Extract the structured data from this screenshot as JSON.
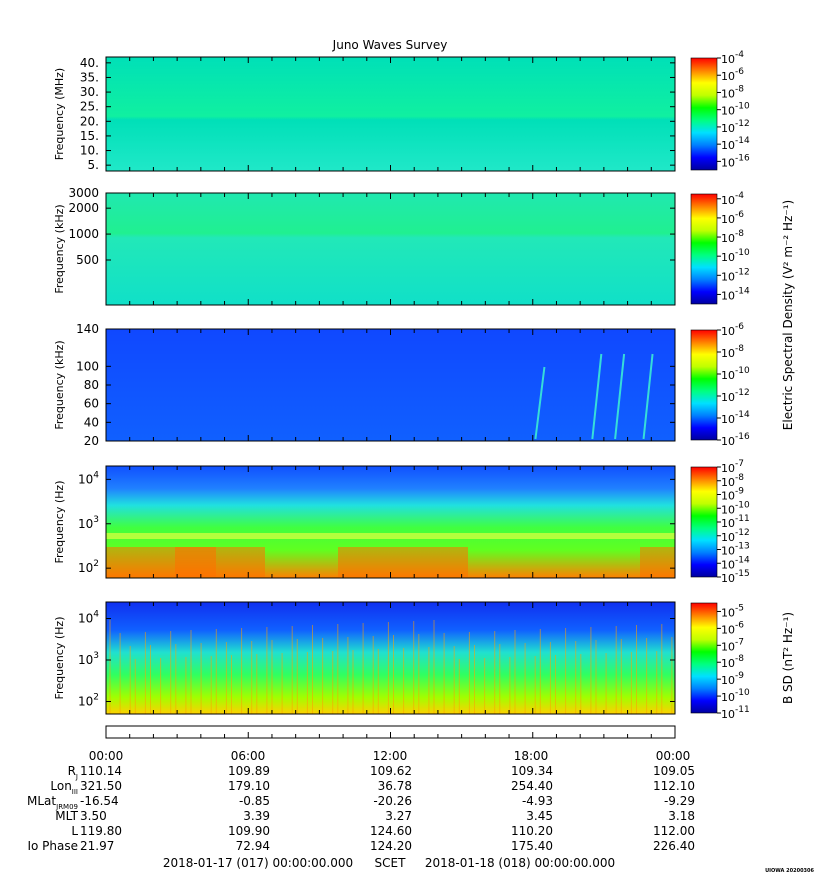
{
  "title": "Juno Waves Survey",
  "colors": {
    "colormap": [
      "#0000a0",
      "#0000ff",
      "#0080ff",
      "#00e0ff",
      "#00ff80",
      "#00ff00",
      "#c0ff00",
      "#ffff00",
      "#ff8000",
      "#ff0000"
    ]
  },
  "chart_data": [
    {
      "type": "heatmap",
      "name": "panel-1",
      "ylabel": "Frequency (MHz)",
      "yscale": "linear",
      "ylim": [
        3,
        42
      ],
      "yticks": [
        {
          "v": 40,
          "t": "40."
        },
        {
          "v": 35,
          "t": "35."
        },
        {
          "v": 30,
          "t": "30."
        },
        {
          "v": 25,
          "t": "25."
        },
        {
          "v": 20,
          "t": "20."
        },
        {
          "v": 15,
          "t": "15."
        },
        {
          "v": 10,
          "t": "10."
        },
        {
          "v": 5,
          "t": "5."
        }
      ],
      "colorbar": {
        "min_exp": -17,
        "max_exp": -4,
        "ticks": [
          {
            "base": "10",
            "exp": "-4",
            "e": -4
          },
          {
            "base": "10",
            "exp": "-6",
            "e": -6
          },
          {
            "base": "10",
            "exp": "-8",
            "e": -8
          },
          {
            "base": "10",
            "exp": "-10",
            "e": -10
          },
          {
            "base": "10",
            "exp": "-12",
            "e": -12
          },
          {
            "base": "10",
            "exp": "-14",
            "e": -14
          },
          {
            "base": "10",
            "exp": "-16",
            "e": -16
          }
        ]
      }
    },
    {
      "type": "heatmap",
      "name": "panel-2",
      "ylabel": "Frequency (kHz)",
      "yscale": "log",
      "ylim": [
        150,
        3000
      ],
      "yticks": [
        {
          "v": 3000,
          "t": "3000"
        },
        {
          "v": 2000,
          "t": "2000"
        },
        {
          "v": 1000,
          "t": "1000"
        },
        {
          "v": 500,
          "t": "500"
        }
      ],
      "colorbar": {
        "min_exp": -15,
        "max_exp": -3.5,
        "ticks": [
          {
            "base": "10",
            "exp": "-4",
            "e": -4
          },
          {
            "base": "10",
            "exp": "-6",
            "e": -6
          },
          {
            "base": "10",
            "exp": "-8",
            "e": -8
          },
          {
            "base": "10",
            "exp": "-10",
            "e": -10
          },
          {
            "base": "10",
            "exp": "-12",
            "e": -12
          },
          {
            "base": "10",
            "exp": "-14",
            "e": -14
          }
        ]
      }
    },
    {
      "type": "heatmap",
      "name": "panel-3",
      "ylabel": "Frequency (kHz)",
      "yscale": "linear",
      "ylim": [
        20,
        140
      ],
      "yticks": [
        {
          "v": 140,
          "t": "140"
        },
        {
          "v": 100,
          "t": "100"
        },
        {
          "v": 80,
          "t": "80"
        },
        {
          "v": 60,
          "t": "60"
        },
        {
          "v": 40,
          "t": "40"
        },
        {
          "v": 20,
          "t": "20"
        }
      ],
      "colorbar": {
        "min_exp": -16,
        "max_exp": -6,
        "ticks": [
          {
            "base": "10",
            "exp": "-6",
            "e": -6
          },
          {
            "base": "10",
            "exp": "-8",
            "e": -8
          },
          {
            "base": "10",
            "exp": "-10",
            "e": -10
          },
          {
            "base": "10",
            "exp": "-12",
            "e": -12
          },
          {
            "base": "10",
            "exp": "-14",
            "e": -14
          },
          {
            "base": "10",
            "exp": "-16",
            "e": -16
          }
        ]
      }
    },
    {
      "type": "heatmap",
      "name": "panel-4",
      "ylabel": "Frequency (Hz)",
      "yscale": "log",
      "ylim": [
        60,
        20000
      ],
      "yticks": [
        {
          "v": 10000,
          "base": "10",
          "exp": "4"
        },
        {
          "v": 1000,
          "base": "10",
          "exp": "3"
        },
        {
          "v": 100,
          "base": "10",
          "exp": "2"
        }
      ],
      "colorbar": {
        "min_exp": -15,
        "max_exp": -7,
        "ticks": [
          {
            "base": "10",
            "exp": "-7",
            "e": -7
          },
          {
            "base": "10",
            "exp": "-8",
            "e": -8
          },
          {
            "base": "10",
            "exp": "-9",
            "e": -9
          },
          {
            "base": "10",
            "exp": "-10",
            "e": -10
          },
          {
            "base": "10",
            "exp": "-11",
            "e": -11
          },
          {
            "base": "10",
            "exp": "-12",
            "e": -12
          },
          {
            "base": "10",
            "exp": "-13",
            "e": -13
          },
          {
            "base": "10",
            "exp": "-14",
            "e": -14
          },
          {
            "base": "10",
            "exp": "-15",
            "e": -15
          }
        ]
      }
    },
    {
      "type": "heatmap",
      "name": "panel-5",
      "ylabel": "Frequency (Hz)",
      "yscale": "log",
      "ylim": [
        50,
        25000
      ],
      "yticks": [
        {
          "v": 10000,
          "base": "10",
          "exp": "4"
        },
        {
          "v": 1000,
          "base": "10",
          "exp": "3"
        },
        {
          "v": 100,
          "base": "10",
          "exp": "2"
        }
      ],
      "colorbar": {
        "min_exp": -11,
        "max_exp": -4.5,
        "ticks": [
          {
            "base": "10",
            "exp": "-5",
            "e": -5
          },
          {
            "base": "10",
            "exp": "-6",
            "e": -6
          },
          {
            "base": "10",
            "exp": "-7",
            "e": -7
          },
          {
            "base": "10",
            "exp": "-8",
            "e": -8
          },
          {
            "base": "10",
            "exp": "-9",
            "e": -9
          },
          {
            "base": "10",
            "exp": "-10",
            "e": -10
          },
          {
            "base": "10",
            "exp": "-11",
            "e": -11
          }
        ]
      }
    }
  ],
  "colorbar_labels": {
    "electric": "Electric Spectral Density (V² m⁻² Hz⁻¹)",
    "magnetic": "B SD (nT² Hz⁻¹)"
  },
  "time_axis": {
    "major_labels": [
      "00:00",
      "06:00",
      "12:00",
      "18:00",
      "00:00"
    ]
  },
  "ephemeris": {
    "rows": [
      {
        "label": "R",
        "sub": "J",
        "values": [
          "110.14",
          "109.89",
          "109.62",
          "109.34",
          "109.05"
        ]
      },
      {
        "label": "Lon",
        "sub": "III",
        "values": [
          "321.50",
          "179.10",
          "36.78",
          "254.40",
          "112.10"
        ]
      },
      {
        "label": "MLat",
        "sub": "JRM09",
        "values": [
          "-16.54",
          "-0.85",
          "-20.26",
          "-4.93",
          "-9.29"
        ]
      },
      {
        "label": "MLT",
        "sub": "",
        "values": [
          "3.50",
          "3.39",
          "3.27",
          "3.45",
          "3.18"
        ]
      },
      {
        "label": "L",
        "sub": "",
        "values": [
          "119.80",
          "109.90",
          "124.60",
          "110.20",
          "112.00"
        ]
      },
      {
        "label": "Io Phase",
        "sub": "",
        "values": [
          "21.97",
          "72.94",
          "124.20",
          "175.40",
          "226.40"
        ]
      }
    ]
  },
  "footer": {
    "start": "2018-01-17 (017) 00:00:00.000",
    "scet": "SCET",
    "end": "2018-01-18 (018) 00:00:00.000",
    "credit": "UIOWA 20200306"
  }
}
